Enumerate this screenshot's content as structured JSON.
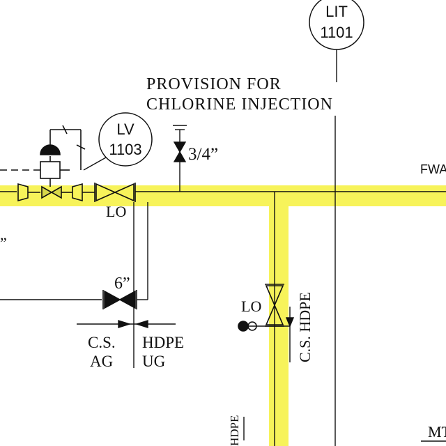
{
  "instruments": {
    "lit": {
      "line1": "LIT",
      "line2": "1101"
    },
    "lv": {
      "line1": "LV",
      "line2": "1103"
    }
  },
  "provision_note": {
    "line1": "PROVISION FOR",
    "line2": "CHLORINE INJECTION"
  },
  "sizes": {
    "chlorine_tap": "3/4”",
    "bypass_valve": "6”",
    "left_edge": "”"
  },
  "line_tags": {
    "fwa": "FWA",
    "mt": "MT",
    "hdpe_bottom": "HDPE"
  },
  "valve_status": {
    "main_valve": "LO",
    "vertical_valve": "LO"
  },
  "spec_break_horizontal": {
    "left_line1": "C.S.",
    "left_line2": "AG",
    "right_line1": "HDPE",
    "right_line2": "UG"
  },
  "spec_break_vertical": {
    "label": "C.S. HDPE"
  },
  "colors": {
    "highlight": "#f7f35a",
    "line": "#111111"
  }
}
